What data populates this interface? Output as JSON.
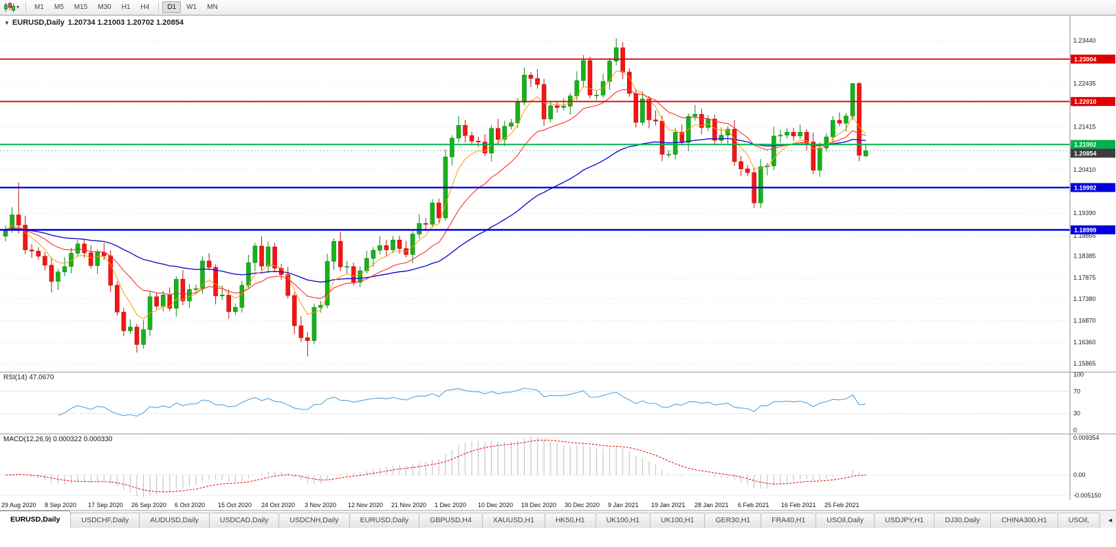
{
  "toolbar": {
    "chart_type_icon": "candlestick-chart",
    "caret_icon": "▾",
    "timeframes": [
      "M1",
      "M5",
      "M15",
      "M30",
      "H1",
      "H4",
      "D1",
      "W1",
      "MN"
    ],
    "active_timeframe": "D1"
  },
  "chart_header": {
    "collapse_arrow": "▼",
    "symbol": "EURUSD,Daily",
    "ohlc": "1.20734 1.21003 1.20702 1.20854"
  },
  "indicators": {
    "rsi": {
      "label": "RSI(14) 47.0670",
      "period": 14,
      "value": 47.067,
      "ticks": [
        "100",
        "70",
        "30",
        "0"
      ]
    },
    "macd": {
      "label": "MACD(12,26,9) 0.000322 0.000330",
      "values": [
        0.000322,
        0.00033
      ],
      "ticks": [
        {
          "value": 0.009354,
          "label": "0.009354"
        },
        {
          "value": 0,
          "label": "0.00"
        },
        {
          "value": -0.00515,
          "label": "-0.005150"
        }
      ]
    }
  },
  "chart_data": {
    "type": "candlestick",
    "symbol": "EURUSD",
    "timeframe": "Daily",
    "price_axis": {
      "min": 1.1567,
      "max": 1.2402,
      "ticks": [
        1.2344,
        1.2299,
        1.22435,
        1.21945,
        1.21415,
        1.2041,
        1.1993,
        1.1939,
        1.18865,
        1.18385,
        1.17875,
        1.1738,
        1.1687,
        1.1636,
        1.15865
      ]
    },
    "x_axis_dates": [
      "29 Aug 2020",
      "8 Sep 2020",
      "17 Sep 2020",
      "26 Sep 2020",
      "6 Oct 2020",
      "15 Oct 2020",
      "24 Oct 2020",
      "3 Nov 2020",
      "12 Nov 2020",
      "21 Nov 2020",
      "1 Dec 2020",
      "10 Dec 2020",
      "19 Dec 2020",
      "30 Dec 2020",
      "9 Jan 2021",
      "19 Jan 2021",
      "28 Jan 2021",
      "6 Feb 2021",
      "16 Feb 2021",
      "25 Feb 2021"
    ],
    "levels": [
      {
        "value": 1.23004,
        "label": "1.23004",
        "color": "#dd0000",
        "width": 1.8,
        "kind": "resistance"
      },
      {
        "value": 1.2201,
        "label": "1.22010",
        "color": "#dd0000",
        "width": 1.8,
        "kind": "resistance"
      },
      {
        "value": 1.21002,
        "label": "1.21002",
        "color": "#00b14e",
        "width": 2,
        "kind": "pivot"
      },
      {
        "value": 1.19992,
        "label": "1.19992",
        "color": "#0000dd",
        "width": 2.4,
        "kind": "support"
      },
      {
        "value": 1.18999,
        "label": "1.18999",
        "color": "#0000dd",
        "width": 2.4,
        "kind": "support"
      }
    ],
    "current_price": {
      "value": 1.20854,
      "label": "1.20854",
      "box_color": "#3d3d3d"
    },
    "moving_averages": [
      {
        "name": "slow",
        "type": "ema",
        "period": 48,
        "color": "#1414cc",
        "width": 1.4
      },
      {
        "name": "fast",
        "type": "ema",
        "period": 6,
        "color": "#ff9900",
        "width": 1
      },
      {
        "name": "medium",
        "type": "ema",
        "period": 16,
        "color": "#ff2a2a",
        "width": 1.1
      }
    ],
    "colors": {
      "up": "#18b11c",
      "up_border": "#0b8a14",
      "down": "#f31616",
      "down_border": "#bf0d0d",
      "grid": "#e0e0e0",
      "rsi_line": "#4ea3e0",
      "macd_bar": "#c6c6c6",
      "macd_signal": "#e60000"
    },
    "candles": [
      [
        1.1885,
        1.191,
        1.1873,
        1.19
      ],
      [
        1.19,
        1.1953,
        1.1893,
        1.1935
      ],
      [
        1.1935,
        1.2011,
        1.1891,
        1.1911
      ],
      [
        1.1911,
        1.1933,
        1.1843,
        1.1853
      ],
      [
        1.1853,
        1.1866,
        1.1834,
        1.185
      ],
      [
        1.185,
        1.1859,
        1.183,
        1.1838
      ],
      [
        1.1838,
        1.1848,
        1.1805,
        1.1817
      ],
      [
        1.1817,
        1.1835,
        1.1753,
        1.1779
      ],
      [
        1.1779,
        1.1808,
        1.1759,
        1.1801
      ],
      [
        1.1801,
        1.1836,
        1.1791,
        1.1814
      ],
      [
        1.1814,
        1.1858,
        1.1798,
        1.1845
      ],
      [
        1.1845,
        1.1876,
        1.1837,
        1.1867
      ],
      [
        1.1867,
        1.1877,
        1.1834,
        1.1846
      ],
      [
        1.1846,
        1.1864,
        1.1809,
        1.1816
      ],
      [
        1.1816,
        1.1854,
        1.1796,
        1.1847
      ],
      [
        1.1847,
        1.1869,
        1.1829,
        1.1839
      ],
      [
        1.1839,
        1.1852,
        1.1754,
        1.177
      ],
      [
        1.177,
        1.1779,
        1.1699,
        1.1707
      ],
      [
        1.1707,
        1.1717,
        1.1651,
        1.1663
      ],
      [
        1.1663,
        1.169,
        1.1656,
        1.1672
      ],
      [
        1.1672,
        1.1679,
        1.1612,
        1.1631
      ],
      [
        1.1631,
        1.1688,
        1.1621,
        1.1666
      ],
      [
        1.1666,
        1.1756,
        1.165,
        1.1743
      ],
      [
        1.1743,
        1.1752,
        1.1713,
        1.1721
      ],
      [
        1.1721,
        1.1757,
        1.1709,
        1.1747
      ],
      [
        1.1747,
        1.1765,
        1.1709,
        1.1716
      ],
      [
        1.1716,
        1.1791,
        1.1696,
        1.1784
      ],
      [
        1.1784,
        1.1806,
        1.1723,
        1.1733
      ],
      [
        1.1733,
        1.1773,
        1.1717,
        1.176
      ],
      [
        1.176,
        1.1771,
        1.1752,
        1.1762
      ],
      [
        1.1762,
        1.1837,
        1.175,
        1.1827
      ],
      [
        1.1827,
        1.1845,
        1.1805,
        1.1812
      ],
      [
        1.1812,
        1.1819,
        1.1725,
        1.1745
      ],
      [
        1.1745,
        1.1769,
        1.1735,
        1.1747
      ],
      [
        1.1747,
        1.176,
        1.1692,
        1.1708
      ],
      [
        1.1708,
        1.1727,
        1.17,
        1.1718
      ],
      [
        1.1718,
        1.178,
        1.1706,
        1.177
      ],
      [
        1.177,
        1.1841,
        1.1763,
        1.1823
      ],
      [
        1.1823,
        1.1869,
        1.1803,
        1.1862
      ],
      [
        1.1862,
        1.1884,
        1.1805,
        1.1815
      ],
      [
        1.1815,
        1.1873,
        1.1799,
        1.186
      ],
      [
        1.186,
        1.1869,
        1.1802,
        1.181
      ],
      [
        1.181,
        1.182,
        1.1783,
        1.1795
      ],
      [
        1.1795,
        1.1813,
        1.1739,
        1.1746
      ],
      [
        1.1746,
        1.1753,
        1.1655,
        1.1675
      ],
      [
        1.1675,
        1.1697,
        1.1637,
        1.1647
      ],
      [
        1.1647,
        1.166,
        1.1603,
        1.164
      ],
      [
        1.164,
        1.1727,
        1.1632,
        1.1718
      ],
      [
        1.1718,
        1.1733,
        1.1706,
        1.1723
      ],
      [
        1.1723,
        1.1844,
        1.1716,
        1.1826
      ],
      [
        1.1826,
        1.188,
        1.1806,
        1.1873
      ],
      [
        1.1873,
        1.1895,
        1.1803,
        1.1813
      ],
      [
        1.1813,
        1.1827,
        1.1797,
        1.1814
      ],
      [
        1.1814,
        1.1823,
        1.1769,
        1.1777
      ],
      [
        1.1777,
        1.1814,
        1.1765,
        1.1804
      ],
      [
        1.1804,
        1.1851,
        1.1797,
        1.1833
      ],
      [
        1.1833,
        1.1859,
        1.1813,
        1.1852
      ],
      [
        1.1852,
        1.1885,
        1.1842,
        1.1863
      ],
      [
        1.1863,
        1.1876,
        1.1837,
        1.1853
      ],
      [
        1.1853,
        1.1885,
        1.1845,
        1.1876
      ],
      [
        1.1876,
        1.1886,
        1.1844,
        1.1856
      ],
      [
        1.1856,
        1.1874,
        1.1835,
        1.1842
      ],
      [
        1.1842,
        1.1897,
        1.1822,
        1.189
      ],
      [
        1.189,
        1.1937,
        1.188,
        1.1915
      ],
      [
        1.1915,
        1.1928,
        1.1897,
        1.1913
      ],
      [
        1.1913,
        1.1972,
        1.1905,
        1.1963
      ],
      [
        1.1963,
        1.1973,
        1.1916,
        1.1928
      ],
      [
        1.1928,
        1.2089,
        1.1921,
        1.2071
      ],
      [
        1.2071,
        1.2122,
        1.2051,
        1.2115
      ],
      [
        1.2115,
        1.2167,
        1.2105,
        1.2145
      ],
      [
        1.2145,
        1.2158,
        1.2105,
        1.2121
      ],
      [
        1.2121,
        1.213,
        1.21,
        1.2108
      ],
      [
        1.2108,
        1.2118,
        1.2094,
        1.2106
      ],
      [
        1.2106,
        1.2124,
        1.2073,
        1.208
      ],
      [
        1.208,
        1.2145,
        1.206,
        1.2138
      ],
      [
        1.2138,
        1.216,
        1.2102,
        1.2112
      ],
      [
        1.2112,
        1.2156,
        1.2096,
        1.2143
      ],
      [
        1.2143,
        1.216,
        1.2135,
        1.2151
      ],
      [
        1.2151,
        1.2209,
        1.2139,
        1.2199
      ],
      [
        1.2199,
        1.2281,
        1.2192,
        1.2263
      ],
      [
        1.2263,
        1.227,
        1.2235,
        1.2255
      ],
      [
        1.2255,
        1.2277,
        1.2231,
        1.2241
      ],
      [
        1.2241,
        1.2254,
        1.2144,
        1.216
      ],
      [
        1.216,
        1.22,
        1.2152,
        1.2191
      ],
      [
        1.2191,
        1.2201,
        1.2175,
        1.2187
      ],
      [
        1.2187,
        1.2208,
        1.218,
        1.219
      ],
      [
        1.219,
        1.2221,
        1.217,
        1.2214
      ],
      [
        1.2214,
        1.2272,
        1.2204,
        1.225
      ],
      [
        1.225,
        1.231,
        1.2234,
        1.2297
      ],
      [
        1.2297,
        1.2306,
        1.2208,
        1.2216
      ],
      [
        1.2216,
        1.2226,
        1.2204,
        1.2216
      ],
      [
        1.2216,
        1.2266,
        1.2209,
        1.2248
      ],
      [
        1.2248,
        1.2303,
        1.2228,
        1.2296
      ],
      [
        1.2296,
        1.2349,
        1.2286,
        1.2327
      ],
      [
        1.2327,
        1.234,
        1.2254,
        1.227
      ],
      [
        1.227,
        1.2279,
        1.2212,
        1.222
      ],
      [
        1.222,
        1.223,
        1.214,
        1.2152
      ],
      [
        1.2152,
        1.2225,
        1.2145,
        1.2207
      ],
      [
        1.2207,
        1.2214,
        1.2138,
        1.2158
      ],
      [
        1.2158,
        1.218,
        1.2145,
        1.2155
      ],
      [
        1.2155,
        1.2168,
        1.2061,
        1.2077
      ],
      [
        1.2077,
        1.2086,
        1.2069,
        1.2077
      ],
      [
        1.2077,
        1.2139,
        1.2065,
        1.2129
      ],
      [
        1.2129,
        1.2147,
        1.2098,
        1.2105
      ],
      [
        1.2105,
        1.2173,
        1.2085,
        1.2166
      ],
      [
        1.2166,
        1.2193,
        1.2156,
        1.2171
      ],
      [
        1.2171,
        1.2184,
        1.2124,
        1.214
      ],
      [
        1.214,
        1.2169,
        1.2132,
        1.216
      ],
      [
        1.216,
        1.217,
        1.2098,
        1.211
      ],
      [
        1.211,
        1.214,
        1.2103,
        1.2122
      ],
      [
        1.2122,
        1.2143,
        1.2102,
        1.2136
      ],
      [
        1.2136,
        1.2158,
        1.205,
        1.206
      ],
      [
        1.206,
        1.2073,
        1.2027,
        1.2043
      ],
      [
        1.2043,
        1.2052,
        1.2026,
        1.2034
      ],
      [
        1.2034,
        1.2044,
        1.1951,
        1.1963
      ],
      [
        1.1963,
        1.2066,
        1.1952,
        1.2048
      ],
      [
        1.2048,
        1.2057,
        1.2028,
        1.205
      ],
      [
        1.205,
        1.2142,
        1.204,
        1.212
      ],
      [
        1.212,
        1.2135,
        1.2104,
        1.2122
      ],
      [
        1.2122,
        1.2138,
        1.2114,
        1.2129
      ],
      [
        1.2129,
        1.2139,
        1.2108,
        1.212
      ],
      [
        1.212,
        1.2147,
        1.2113,
        1.2129
      ],
      [
        1.2129,
        1.2136,
        1.2086,
        1.2106
      ],
      [
        1.2106,
        1.2128,
        1.203,
        1.204
      ],
      [
        1.204,
        1.2105,
        1.2024,
        1.2092
      ],
      [
        1.2092,
        1.2127,
        1.2084,
        1.2118
      ],
      [
        1.2118,
        1.2167,
        1.2106,
        1.2157
      ],
      [
        1.2157,
        1.2175,
        1.2143,
        1.215
      ],
      [
        1.215,
        1.2174,
        1.213,
        1.2167
      ],
      [
        1.2167,
        1.2244,
        1.2157,
        1.2243
      ],
      [
        1.2243,
        1.2247,
        1.2061,
        1.2075
      ],
      [
        1.20734,
        1.21003,
        1.20702,
        1.20854
      ]
    ]
  },
  "tabs": {
    "scroll_icon": "◄",
    "items": [
      {
        "label": "EURUSD,Daily",
        "active": true
      },
      {
        "label": "USDCHF,Daily",
        "active": false
      },
      {
        "label": "AUDUSD,Daily",
        "active": false
      },
      {
        "label": "USDCAD,Daily",
        "active": false
      },
      {
        "label": "USDCNH,Daily",
        "active": false
      },
      {
        "label": "EURUSD,Daily",
        "active": false
      },
      {
        "label": "GBPUSD,H4",
        "active": false
      },
      {
        "label": "XAUUSD,H1",
        "active": false
      },
      {
        "label": "HK50,H1",
        "active": false
      },
      {
        "label": "UK100,H1",
        "active": false
      },
      {
        "label": "UK100,H1",
        "active": false
      },
      {
        "label": "GER30,H1",
        "active": false
      },
      {
        "label": "FRA40,H1",
        "active": false
      },
      {
        "label": "USOil,Daily",
        "active": false
      },
      {
        "label": "USDJPY,H1",
        "active": false
      },
      {
        "label": "DJ30,Daily",
        "active": false
      },
      {
        "label": "CHINA300,H1",
        "active": false
      },
      {
        "label": "USOil,",
        "active": false
      }
    ]
  }
}
